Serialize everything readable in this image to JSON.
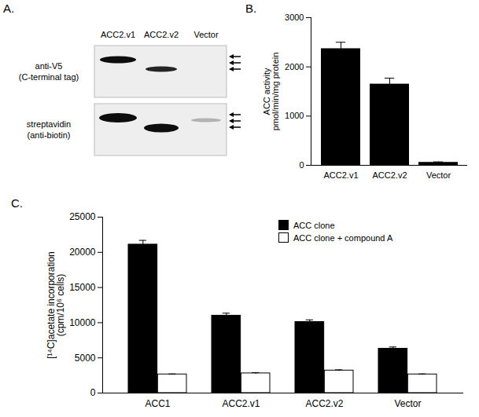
{
  "blot": {
    "title": "A.",
    "lanes": [
      "ACC2.v1",
      "ACC2.v2",
      "Vector"
    ],
    "rows": [
      {
        "label": [
          "anti-V5",
          "(C-terminal tag)"
        ]
      },
      {
        "label": [
          "streptavidin",
          "(anti-biotin)"
        ]
      }
    ]
  },
  "chart_data": [
    {
      "type": "bar",
      "title": "B.",
      "categories": [
        "ACC2.v1",
        "ACC2.v2",
        "Vector"
      ],
      "values": [
        2370,
        1650,
        60
      ],
      "errors": [
        130,
        120,
        10
      ],
      "color": "#000000",
      "ylabel": [
        "ACC activity",
        "pmol/min/mg protein"
      ],
      "ylim": [
        0,
        3000
      ],
      "yticks": [
        0,
        1000,
        2000,
        3000
      ]
    },
    {
      "type": "bar",
      "title": "C.",
      "categories": [
        "ACC1",
        "ACC2.v1",
        "ACC2.v2",
        "Vector"
      ],
      "series": [
        {
          "name": "ACC clone",
          "color": "#000000",
          "values": [
            21100,
            11000,
            10100,
            6300
          ],
          "errors": [
            600,
            350,
            300,
            250
          ]
        },
        {
          "name": "ACC clone + compound A",
          "color": "#ffffff",
          "values": [
            2650,
            2800,
            3200,
            2650
          ],
          "errors": [
            60,
            100,
            100,
            60
          ]
        }
      ],
      "ylabel": [
        "[¹⁴C]acetate incorporation",
        "(cpm/10⁶ cells)"
      ],
      "ylim": [
        0,
        25000
      ],
      "yticks": [
        0,
        5000,
        10000,
        15000,
        20000,
        25000
      ],
      "legend": "top-right"
    }
  ]
}
